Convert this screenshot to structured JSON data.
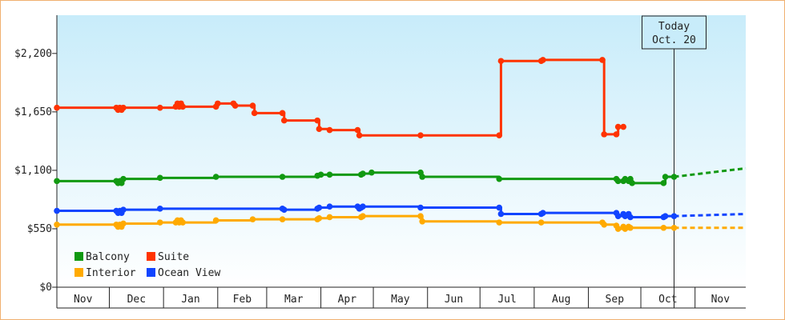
{
  "chart_data": {
    "type": "line",
    "x_axis": {
      "months": [
        "Nov",
        "Dec",
        "Jan",
        "Feb",
        "Mar",
        "Apr",
        "May",
        "Jun",
        "Jul",
        "Aug",
        "Sep",
        "Oct",
        "Nov"
      ],
      "range": [
        "2010-11-01",
        "2011-11-30"
      ]
    },
    "y_axis": {
      "ticks": [
        0,
        550,
        1100,
        1650,
        2200
      ],
      "tick_labels": [
        "$0",
        "$550",
        "$1,100",
        "$1,650",
        "$2,200"
      ],
      "ylim": [
        0,
        2560
      ]
    },
    "today_marker": {
      "date": "2011-10-20",
      "line1": "Today",
      "line2": "Oct. 20"
    },
    "legend_position": "bottom-left",
    "colors": {
      "plot_background_top": "#c8ecfa",
      "plot_background_bottom": "#ffffff",
      "frame_border": "#f0b070"
    },
    "series": [
      {
        "name": "Balcony",
        "color": "#119911",
        "points": [
          [
            "2010-11-01",
            999
          ],
          [
            "2010-12-05",
            999
          ],
          [
            "2010-12-06",
            980
          ],
          [
            "2010-12-07",
            999
          ],
          [
            "2010-12-08",
            980
          ],
          [
            "2010-12-09",
            1019
          ],
          [
            "2010-12-30",
            1029
          ],
          [
            "2011-01-31",
            1039
          ],
          [
            "2011-03-10",
            1039
          ],
          [
            "2011-03-30",
            1049
          ],
          [
            "2011-04-01",
            1059
          ],
          [
            "2011-04-06",
            1059
          ],
          [
            "2011-04-24",
            1059
          ],
          [
            "2011-04-25",
            1069
          ],
          [
            "2011-04-30",
            1079
          ],
          [
            "2011-05-28",
            1079
          ],
          [
            "2011-05-29",
            1039
          ],
          [
            "2011-07-12",
            1019
          ],
          [
            "2011-09-17",
            1019
          ],
          [
            "2011-09-18",
            999
          ],
          [
            "2011-09-21",
            999
          ],
          [
            "2011-09-22",
            1019
          ],
          [
            "2011-09-24",
            999
          ],
          [
            "2011-09-25",
            1019
          ],
          [
            "2011-09-26",
            980
          ],
          [
            "2011-10-14",
            980
          ],
          [
            "2011-10-15",
            1039
          ],
          [
            "2011-10-20",
            1039
          ]
        ],
        "forecast": [
          [
            "2011-10-20",
            1039
          ],
          [
            "2011-11-30",
            1119
          ]
        ]
      },
      {
        "name": "Suite",
        "color": "#ff3300",
        "points": [
          [
            "2010-11-01",
            1689
          ],
          [
            "2010-12-05",
            1689
          ],
          [
            "2010-12-06",
            1669
          ],
          [
            "2010-12-07",
            1689
          ],
          [
            "2010-12-08",
            1669
          ],
          [
            "2010-12-09",
            1689
          ],
          [
            "2010-12-30",
            1689
          ],
          [
            "2011-01-08",
            1699
          ],
          [
            "2011-01-09",
            1729
          ],
          [
            "2011-01-10",
            1699
          ],
          [
            "2011-01-11",
            1729
          ],
          [
            "2011-01-12",
            1699
          ],
          [
            "2011-01-31",
            1699
          ],
          [
            "2011-02-01",
            1729
          ],
          [
            "2011-02-10",
            1729
          ],
          [
            "2011-02-11",
            1709
          ],
          [
            "2011-02-21",
            1709
          ],
          [
            "2011-02-22",
            1639
          ],
          [
            "2011-03-10",
            1639
          ],
          [
            "2011-03-11",
            1569
          ],
          [
            "2011-03-30",
            1569
          ],
          [
            "2011-03-31",
            1489
          ],
          [
            "2011-04-06",
            1479
          ],
          [
            "2011-04-22",
            1479
          ],
          [
            "2011-04-23",
            1429
          ],
          [
            "2011-05-28",
            1429
          ],
          [
            "2011-07-12",
            1429
          ],
          [
            "2011-07-13",
            2129
          ],
          [
            "2011-08-05",
            2129
          ],
          [
            "2011-08-06",
            2139
          ],
          [
            "2011-09-09",
            2139
          ],
          [
            "2011-09-10",
            1439
          ],
          [
            "2011-09-17",
            1439
          ],
          [
            "2011-09-18",
            1509
          ],
          [
            "2011-09-21",
            1509
          ]
        ]
      },
      {
        "name": "Interior",
        "color": "#ffaa00",
        "points": [
          [
            "2010-11-01",
            589
          ],
          [
            "2010-12-05",
            589
          ],
          [
            "2010-12-06",
            569
          ],
          [
            "2010-12-07",
            589
          ],
          [
            "2010-12-08",
            569
          ],
          [
            "2010-12-09",
            599
          ],
          [
            "2010-12-30",
            609
          ],
          [
            "2011-01-08",
            609
          ],
          [
            "2011-01-09",
            629
          ],
          [
            "2011-01-10",
            609
          ],
          [
            "2011-01-11",
            629
          ],
          [
            "2011-01-12",
            609
          ],
          [
            "2011-01-31",
            629
          ],
          [
            "2011-02-21",
            639
          ],
          [
            "2011-03-10",
            639
          ],
          [
            "2011-03-30",
            639
          ],
          [
            "2011-03-31",
            649
          ],
          [
            "2011-04-06",
            659
          ],
          [
            "2011-04-24",
            659
          ],
          [
            "2011-04-25",
            669
          ],
          [
            "2011-05-28",
            669
          ],
          [
            "2011-05-29",
            619
          ],
          [
            "2011-07-12",
            609
          ],
          [
            "2011-08-05",
            609
          ],
          [
            "2011-09-09",
            609
          ],
          [
            "2011-09-10",
            589
          ],
          [
            "2011-09-17",
            579
          ],
          [
            "2011-09-18",
            549
          ],
          [
            "2011-09-21",
            569
          ],
          [
            "2011-09-22",
            549
          ],
          [
            "2011-09-24",
            569
          ],
          [
            "2011-09-25",
            559
          ],
          [
            "2011-10-14",
            559
          ],
          [
            "2011-10-20",
            559
          ]
        ],
        "forecast": [
          [
            "2011-10-20",
            559
          ],
          [
            "2011-11-30",
            559
          ]
        ]
      },
      {
        "name": "Ocean View",
        "color": "#1144ff",
        "points": [
          [
            "2010-11-01",
            719
          ],
          [
            "2010-12-05",
            719
          ],
          [
            "2010-12-06",
            699
          ],
          [
            "2010-12-07",
            719
          ],
          [
            "2010-12-08",
            699
          ],
          [
            "2010-12-09",
            729
          ],
          [
            "2010-12-30",
            739
          ],
          [
            "2011-03-10",
            739
          ],
          [
            "2011-03-11",
            729
          ],
          [
            "2011-03-30",
            739
          ],
          [
            "2011-03-31",
            749
          ],
          [
            "2011-04-06",
            759
          ],
          [
            "2011-04-22",
            759
          ],
          [
            "2011-04-23",
            739
          ],
          [
            "2011-04-24",
            749
          ],
          [
            "2011-04-25",
            759
          ],
          [
            "2011-05-28",
            749
          ],
          [
            "2011-07-12",
            749
          ],
          [
            "2011-07-13",
            689
          ],
          [
            "2011-08-05",
            689
          ],
          [
            "2011-08-06",
            699
          ],
          [
            "2011-09-17",
            699
          ],
          [
            "2011-09-18",
            669
          ],
          [
            "2011-09-21",
            689
          ],
          [
            "2011-09-22",
            669
          ],
          [
            "2011-09-24",
            689
          ],
          [
            "2011-09-25",
            659
          ],
          [
            "2011-10-14",
            659
          ],
          [
            "2011-10-15",
            669
          ],
          [
            "2011-10-20",
            669
          ]
        ],
        "forecast": [
          [
            "2011-10-20",
            669
          ],
          [
            "2011-11-30",
            689
          ]
        ]
      }
    ]
  }
}
